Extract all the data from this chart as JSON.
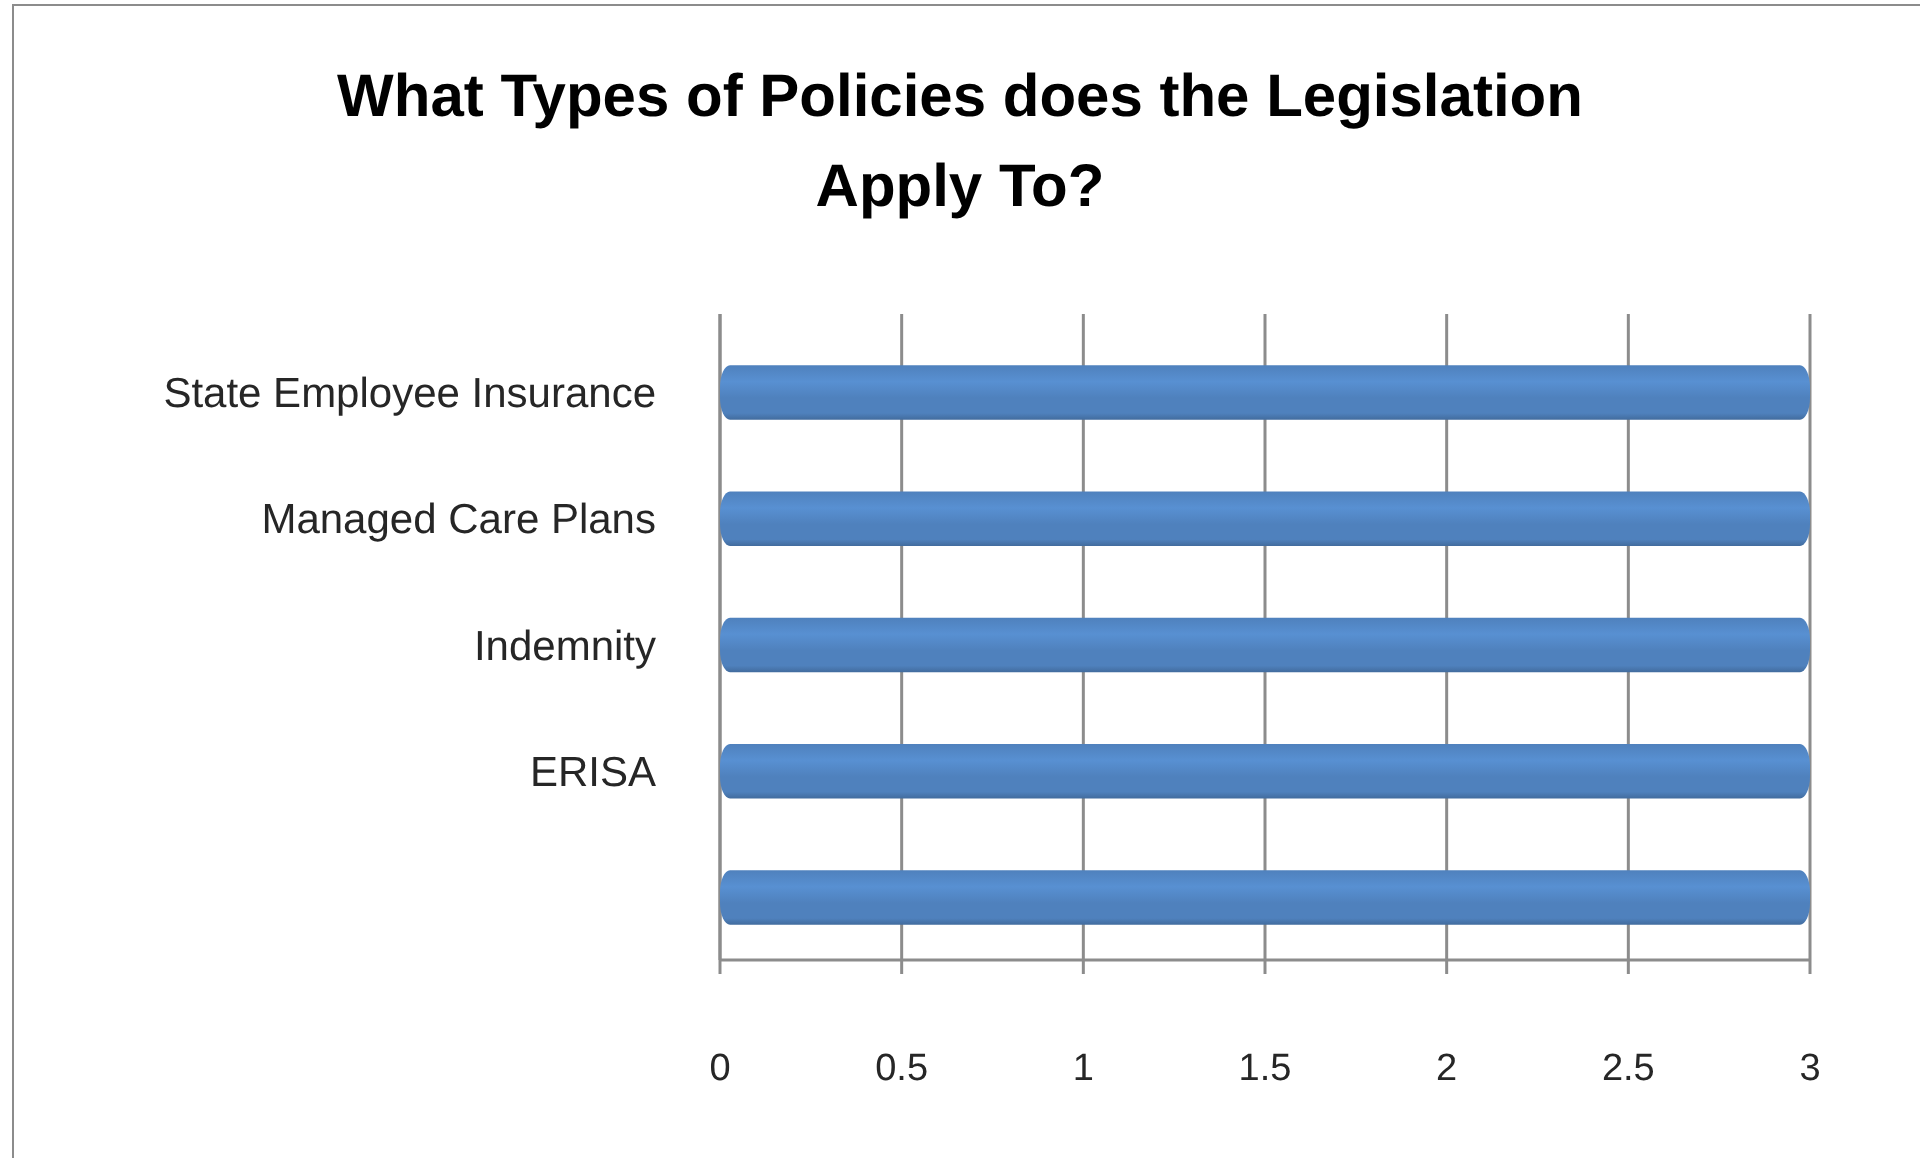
{
  "chart_data": {
    "type": "bar",
    "orientation": "horizontal",
    "title": "What Types of Policies does the Legislation Apply To?",
    "categories": [
      "State Employee Insurance",
      "Managed Care Plans",
      "Indemnity",
      "ERISA",
      null
    ],
    "values": [
      3,
      3,
      3,
      3,
      3
    ],
    "color": "#4f81bd",
    "xlim": [
      0,
      3
    ],
    "xticks": [
      0,
      0.5,
      1,
      1.5,
      2,
      2.5,
      3
    ],
    "grid": "x"
  }
}
